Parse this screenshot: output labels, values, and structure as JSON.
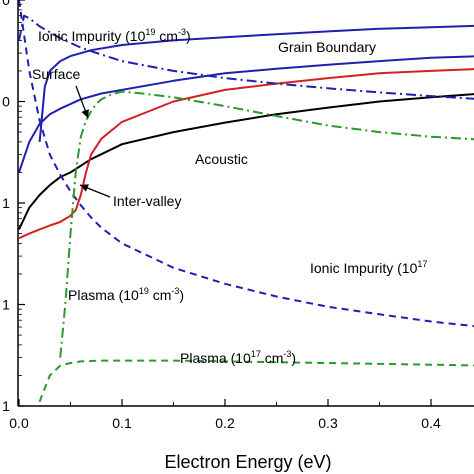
{
  "chart_data": {
    "type": "line",
    "xlabel": "Electron Energy (eV)",
    "xlim": [
      0.0,
      0.45
    ],
    "xticks": [
      "0.0",
      "0.1",
      "0.2",
      "0.3",
      "0.4"
    ],
    "y_scale": "log",
    "ylim": [
      0.01,
      100
    ],
    "yticks_visible": [
      "0",
      "0",
      "1",
      "1",
      "1"
    ],
    "annotations": [
      {
        "text": "Grain Boundary"
      },
      {
        "text": "Surface"
      },
      {
        "text": "Acoustic"
      },
      {
        "text": "Inter-valley"
      },
      {
        "text": "Ionic Impurity (10",
        "sup": "19",
        "rest": " cm",
        "sup2": "-3",
        "end": ")"
      },
      {
        "text": "Ionic Impurity (10",
        "sup": "17",
        "rest": "",
        "sup2": "",
        "end": ""
      },
      {
        "text": "Plasma (10",
        "sup": "19",
        "rest": " cm",
        "sup2": "-3",
        "end": ")"
      },
      {
        "text": "Plasma (10",
        "sup": "17",
        "rest": " cm",
        "sup2": "-3",
        "end": ")"
      }
    ],
    "series": [
      {
        "color": "#1f1fb0",
        "style": "solid",
        "x": [
          0.02,
          0.025,
          0.03,
          0.04,
          0.05,
          0.07,
          0.1,
          0.15,
          0.2,
          0.25,
          0.3,
          0.35,
          0.4,
          0.45
        ],
        "y": [
          4.0,
          14.0,
          20.0,
          25.0,
          28.0,
          32.0,
          36.0,
          40.0,
          43.0,
          46.0,
          49.0,
          52.0,
          54.0,
          56.0
        ]
      },
      {
        "color": "#1f1fb0",
        "style": "solid",
        "x": [
          0.0,
          0.01,
          0.02,
          0.03,
          0.04,
          0.06,
          0.08,
          0.1,
          0.15,
          0.2,
          0.25,
          0.3,
          0.35,
          0.4,
          0.45
        ],
        "y": [
          2.0,
          4.0,
          6.0,
          7.5,
          8.5,
          10.5,
          12.0,
          13.0,
          16.0,
          19.0,
          21.0,
          23.0,
          25.0,
          27.0,
          28.0
        ]
      },
      {
        "color": "#000000",
        "style": "solid",
        "x": [
          0.0,
          0.01,
          0.02,
          0.03,
          0.04,
          0.05,
          0.07,
          0.1,
          0.15,
          0.2,
          0.25,
          0.3,
          0.35,
          0.4,
          0.45
        ],
        "y": [
          0.55,
          0.9,
          1.2,
          1.5,
          1.8,
          2.0,
          2.7,
          3.8,
          5.0,
          6.2,
          7.5,
          8.7,
          10.0,
          11.0,
          12.0
        ]
      },
      {
        "color": "#d42020",
        "style": "solid",
        "x": [
          0.0,
          0.01,
          0.02,
          0.03,
          0.04,
          0.05,
          0.055,
          0.06,
          0.065,
          0.07,
          0.08,
          0.1,
          0.15,
          0.2,
          0.25,
          0.3,
          0.35,
          0.4,
          0.45
        ],
        "y": [
          0.45,
          0.5,
          0.55,
          0.6,
          0.65,
          0.75,
          0.85,
          1.2,
          2.0,
          3.0,
          4.3,
          6.3,
          10.0,
          13.0,
          15.0,
          17.0,
          19.0,
          20.0,
          21.0
        ]
      },
      {
        "color": "#1f1fb0",
        "style": "dashdot",
        "x": [
          0.0,
          0.005,
          0.01,
          0.02,
          0.04,
          0.06,
          0.08,
          0.1,
          0.15,
          0.2,
          0.25,
          0.3,
          0.35,
          0.4,
          0.45
        ],
        "y": [
          40.0,
          70.0,
          66.0,
          55.0,
          42.0,
          34.0,
          29.0,
          25.0,
          20.0,
          17.0,
          15.0,
          13.5,
          12.3,
          11.3,
          10.5
        ]
      },
      {
        "color": "#1f1fb0",
        "style": "dashed",
        "x": [
          0.0,
          0.01,
          0.02,
          0.03,
          0.04,
          0.05,
          0.06,
          0.07,
          0.08,
          0.1,
          0.15,
          0.2,
          0.25,
          0.3,
          0.35,
          0.4,
          0.45
        ],
        "y": [
          100.0,
          20.0,
          6.5,
          3.0,
          1.9,
          1.3,
          0.95,
          0.72,
          0.57,
          0.4,
          0.23,
          0.16,
          0.12,
          0.095,
          0.08,
          0.068,
          0.06
        ]
      },
      {
        "color": "#2a9a2a",
        "style": "dashdot",
        "x": [
          0.04,
          0.045,
          0.05,
          0.055,
          0.06,
          0.065,
          0.07,
          0.075,
          0.08,
          0.09,
          0.1,
          0.12,
          0.15,
          0.2,
          0.25,
          0.3,
          0.35,
          0.4,
          0.45
        ],
        "y": [
          0.03,
          0.1,
          0.5,
          2.0,
          4.5,
          6.5,
          8.0,
          9.5,
          10.5,
          11.8,
          12.5,
          12.0,
          11.0,
          9.0,
          7.2,
          5.8,
          5.0,
          4.5,
          4.2
        ]
      },
      {
        "color": "#2a9a2a",
        "style": "dashed",
        "x": [
          0.02,
          0.025,
          0.03,
          0.04,
          0.05,
          0.06,
          0.08,
          0.1,
          0.15,
          0.2,
          0.25,
          0.3,
          0.35,
          0.4,
          0.45
        ],
        "y": [
          0.011,
          0.015,
          0.02,
          0.025,
          0.0265,
          0.0275,
          0.028,
          0.028,
          0.028,
          0.0275,
          0.027,
          0.0265,
          0.026,
          0.0255,
          0.025
        ]
      }
    ]
  }
}
